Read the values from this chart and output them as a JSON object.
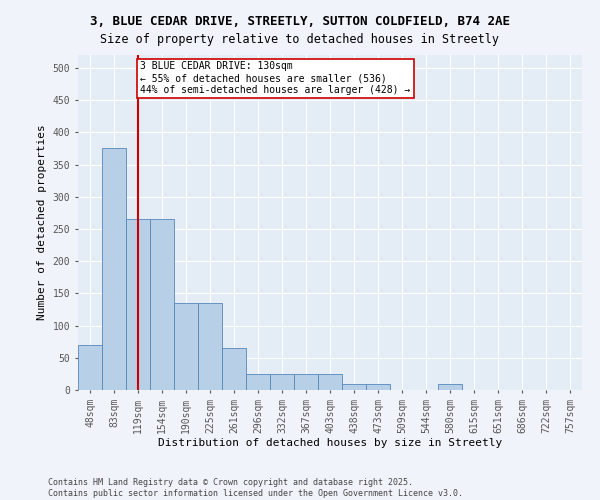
{
  "title_line1": "3, BLUE CEDAR DRIVE, STREETLY, SUTTON COLDFIELD, B74 2AE",
  "title_line2": "Size of property relative to detached houses in Streetly",
  "xlabel": "Distribution of detached houses by size in Streetly",
  "ylabel": "Number of detached properties",
  "categories": [
    "48sqm",
    "83sqm",
    "119sqm",
    "154sqm",
    "190sqm",
    "225sqm",
    "261sqm",
    "296sqm",
    "332sqm",
    "367sqm",
    "403sqm",
    "438sqm",
    "473sqm",
    "509sqm",
    "544sqm",
    "580sqm",
    "615sqm",
    "651sqm",
    "686sqm",
    "722sqm",
    "757sqm"
  ],
  "values": [
    70,
    375,
    265,
    265,
    135,
    135,
    65,
    25,
    25,
    25,
    25,
    10,
    10,
    0,
    0,
    10,
    0,
    0,
    0,
    0,
    0
  ],
  "bar_color": "#b8cfe8",
  "bar_edge_color": "#5588bb",
  "vline_x_index": 2,
  "vline_color": "#cc0000",
  "annotation_line1": "3 BLUE CEDAR DRIVE: 130sqm",
  "annotation_line2": "← 55% of detached houses are smaller (536)",
  "annotation_line3": "44% of semi-detached houses are larger (428) →",
  "annotation_box_color": "#cc0000",
  "ylim": [
    0,
    520
  ],
  "yticks": [
    0,
    50,
    100,
    150,
    200,
    250,
    300,
    350,
    400,
    450,
    500
  ],
  "footer_line1": "Contains HM Land Registry data © Crown copyright and database right 2025.",
  "footer_line2": "Contains public sector information licensed under the Open Government Licence v3.0.",
  "fig_bg_color": "#f0f4fa",
  "axes_bg_color": "#e4ecf5",
  "grid_color": "#ffffff",
  "title_fontsize": 9,
  "subtitle_fontsize": 8.5,
  "axis_label_fontsize": 8,
  "tick_fontsize": 7,
  "annotation_fontsize": 7,
  "footer_fontsize": 6
}
